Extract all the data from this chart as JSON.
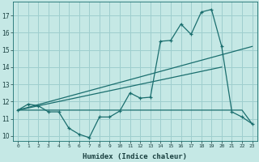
{
  "xlabel": "Humidex (Indice chaleur)",
  "background_color": "#c5e8e5",
  "grid_color": "#9ecece",
  "line_color": "#1a6e6e",
  "xlim": [
    -0.5,
    23.5
  ],
  "ylim": [
    9.7,
    17.8
  ],
  "yticks": [
    10,
    11,
    12,
    13,
    14,
    15,
    16,
    17
  ],
  "xticks": [
    0,
    1,
    2,
    3,
    4,
    5,
    6,
    7,
    8,
    9,
    10,
    11,
    12,
    13,
    14,
    15,
    16,
    17,
    18,
    19,
    20,
    21,
    22,
    23
  ],
  "line1_x": [
    0,
    1,
    2,
    3,
    4,
    5,
    6,
    7,
    8,
    9,
    10,
    11,
    12,
    13,
    14,
    15,
    16,
    17,
    18,
    19,
    20,
    21,
    22,
    23
  ],
  "line1_y": [
    11.5,
    11.85,
    11.75,
    11.4,
    11.4,
    10.45,
    10.1,
    9.9,
    11.1,
    11.1,
    11.45,
    12.5,
    12.2,
    12.25,
    15.5,
    15.55,
    16.5,
    15.9,
    17.2,
    17.35,
    15.2,
    11.4,
    11.1,
    10.7
  ],
  "line2_x": [
    0,
    1,
    2,
    3,
    4,
    5,
    6,
    7,
    8,
    9,
    10,
    11,
    12,
    13,
    14,
    15,
    16,
    17,
    18,
    19,
    20,
    21,
    22,
    23
  ],
  "line2_y": [
    11.5,
    11.5,
    11.5,
    11.5,
    11.5,
    11.5,
    11.5,
    11.5,
    11.5,
    11.5,
    11.5,
    11.5,
    11.5,
    11.5,
    11.5,
    11.5,
    11.5,
    11.5,
    11.5,
    11.5,
    11.5,
    11.5,
    11.5,
    10.7
  ],
  "line3_x": [
    0,
    23
  ],
  "line3_y": [
    11.5,
    15.2
  ],
  "line4_x": [
    0,
    20
  ],
  "line4_y": [
    11.5,
    14.0
  ]
}
